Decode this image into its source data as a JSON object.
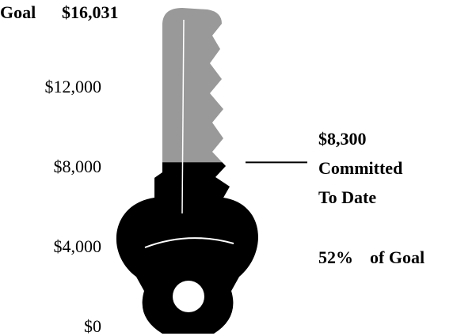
{
  "chart_data": {
    "type": "progress",
    "goal_label": "Goal",
    "goal": 16031,
    "goal_value_label": "$16,031",
    "value": 8300,
    "value_label": "$8,300",
    "value_caption": [
      "Committed",
      "To Date"
    ],
    "percent": 52,
    "percent_label": "52%",
    "percent_caption": "of Goal",
    "fill_color": "#000000",
    "empty_color": "#999999",
    "ylim": [
      0,
      16031
    ],
    "yticks": [
      {
        "value": 0,
        "label": "$0"
      },
      {
        "value": 4000,
        "label": "$4,000"
      },
      {
        "value": 8000,
        "label": "$8,000"
      },
      {
        "value": 12000,
        "label": "$12,000"
      }
    ]
  }
}
